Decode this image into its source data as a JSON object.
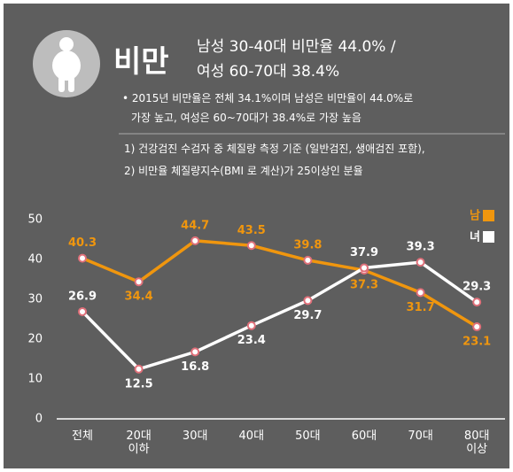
{
  "header": {
    "title": "비만",
    "headline": [
      "남성 30-40대 비만율 44.0% /",
      "여성 60-70대 38.4%"
    ],
    "bullet": [
      "• 2015년 비만율은 전체 34.1%이며 남성은 비만율이 44.0%로",
      "가장 높고, 여성은 60~70대가 38.4%로 가장 높음"
    ],
    "notes": [
      "1) 건강검진 수검자 중 체질량 측정 기준 (일반검진, 생애검진 포함),",
      "2) 비만율 체질량지수(BMI 로 계산)가 25이상인 분율"
    ]
  },
  "chart_data": {
    "type": "line",
    "categories": [
      "전체",
      "20대\n이하",
      "30대",
      "40대",
      "50대",
      "60대",
      "70대",
      "80대\n이상"
    ],
    "series": [
      {
        "name": "남",
        "color": "#f0960e",
        "values": [
          40.3,
          34.4,
          44.7,
          43.5,
          39.8,
          37.3,
          31.7,
          23.1
        ]
      },
      {
        "name": "녀",
        "color": "#ffffff",
        "values": [
          26.9,
          12.5,
          16.8,
          23.4,
          29.7,
          37.9,
          39.3,
          29.3
        ]
      }
    ],
    "ylim": [
      0,
      50
    ],
    "yticks": [
      0,
      10,
      20,
      30,
      40,
      50
    ]
  }
}
